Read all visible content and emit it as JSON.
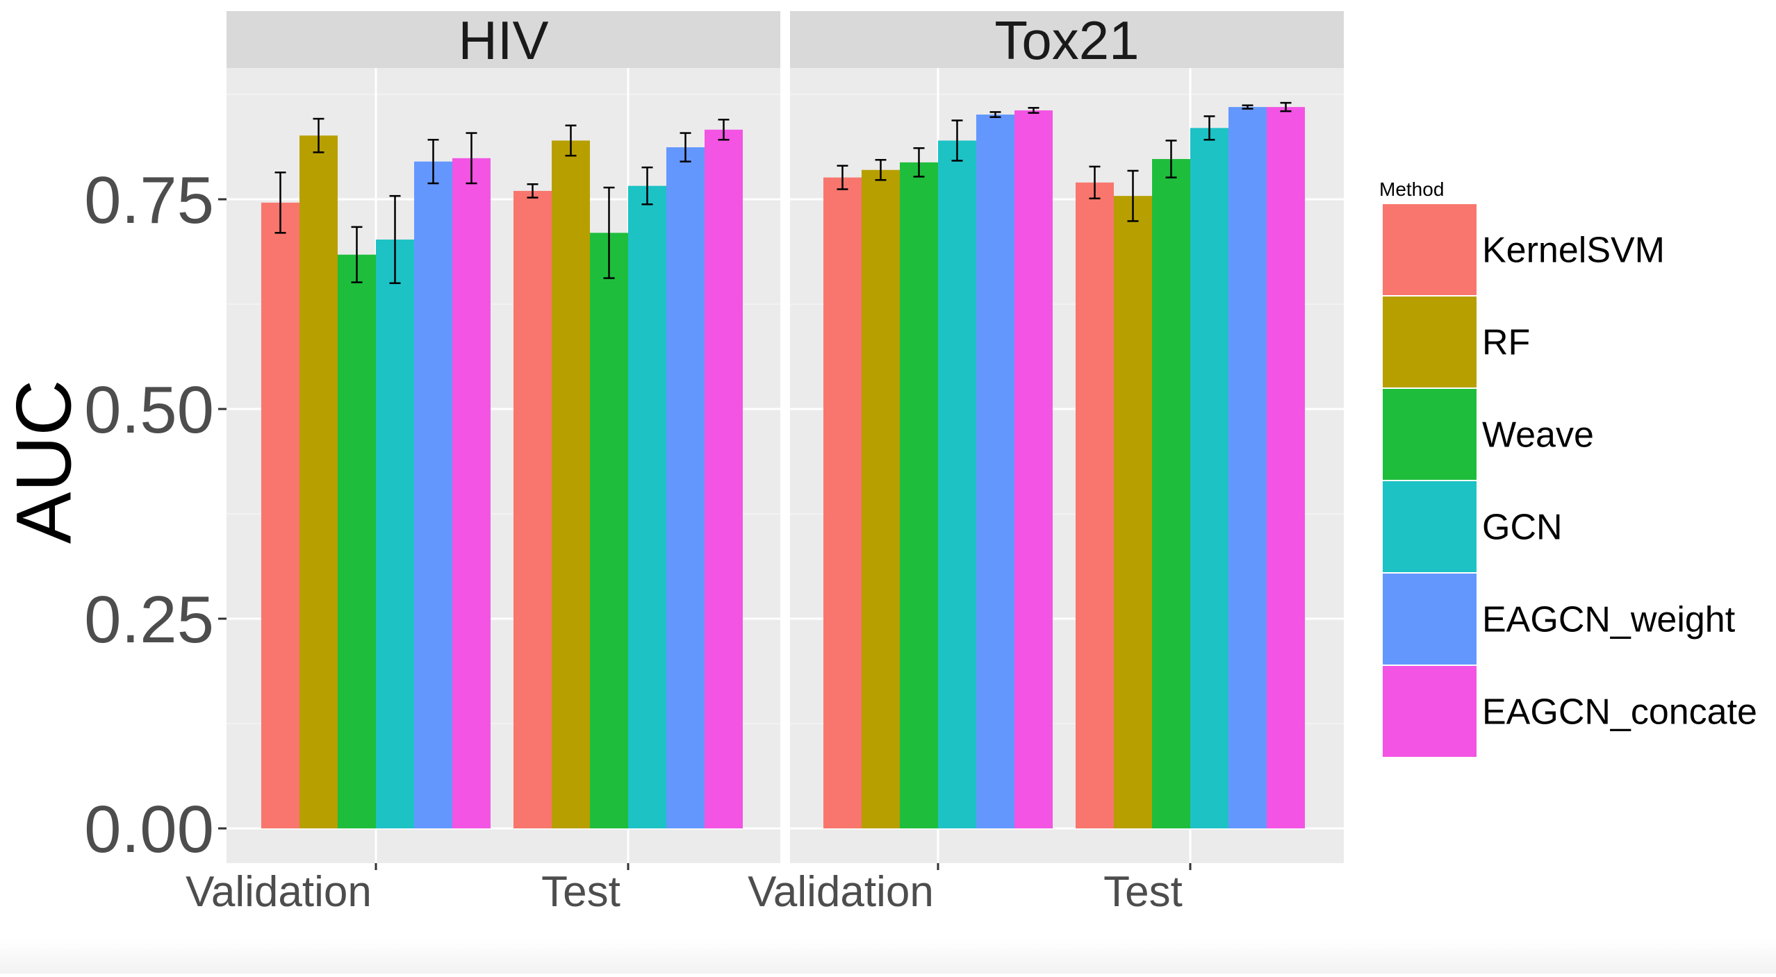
{
  "chart_data": {
    "type": "bar",
    "ylabel": "AUC",
    "xlabel": "",
    "ylim": [
      0,
      0.9
    ],
    "y_ticks": [
      0,
      0.25,
      0.5,
      0.75
    ],
    "y_tick_labels": [
      "0.00",
      "0.25",
      "0.50",
      "0.75"
    ],
    "categories": [
      "Validation",
      "Test"
    ],
    "grid": true,
    "legend_title": "Method",
    "legend_position": "right",
    "methods": [
      {
        "name": "KernelSVM",
        "color": "#F8766D"
      },
      {
        "name": "RF",
        "color": "#B79F00"
      },
      {
        "name": "Weave",
        "color": "#1EBE3C"
      },
      {
        "name": "GCN",
        "color": "#1DC2C5"
      },
      {
        "name": "EAGCN_weight",
        "color": "#6497FE"
      },
      {
        "name": "EAGCN_concate",
        "color": "#F354E3"
      }
    ],
    "panels": [
      {
        "title": "HIV",
        "groups": [
          {
            "category": "Validation",
            "values": [
              0.746,
              0.826,
              0.684,
              0.702,
              0.795,
              0.799
            ],
            "errors": [
              0.036,
              0.02,
              0.033,
              0.052,
              0.026,
              0.03
            ]
          },
          {
            "category": "Test",
            "values": [
              0.76,
              0.82,
              0.71,
              0.766,
              0.812,
              0.833
            ],
            "errors": [
              0.008,
              0.018,
              0.054,
              0.022,
              0.017,
              0.012
            ]
          }
        ]
      },
      {
        "title": "Tox21",
        "groups": [
          {
            "category": "Validation",
            "values": [
              0.776,
              0.785,
              0.794,
              0.82,
              0.851,
              0.856
            ],
            "errors": [
              0.014,
              0.012,
              0.017,
              0.024,
              0.003,
              0.003
            ]
          },
          {
            "category": "Test",
            "values": [
              0.77,
              0.754,
              0.798,
              0.835,
              0.86,
              0.86
            ],
            "errors": [
              0.019,
              0.03,
              0.022,
              0.014,
              0.002,
              0.005
            ]
          }
        ]
      }
    ]
  }
}
